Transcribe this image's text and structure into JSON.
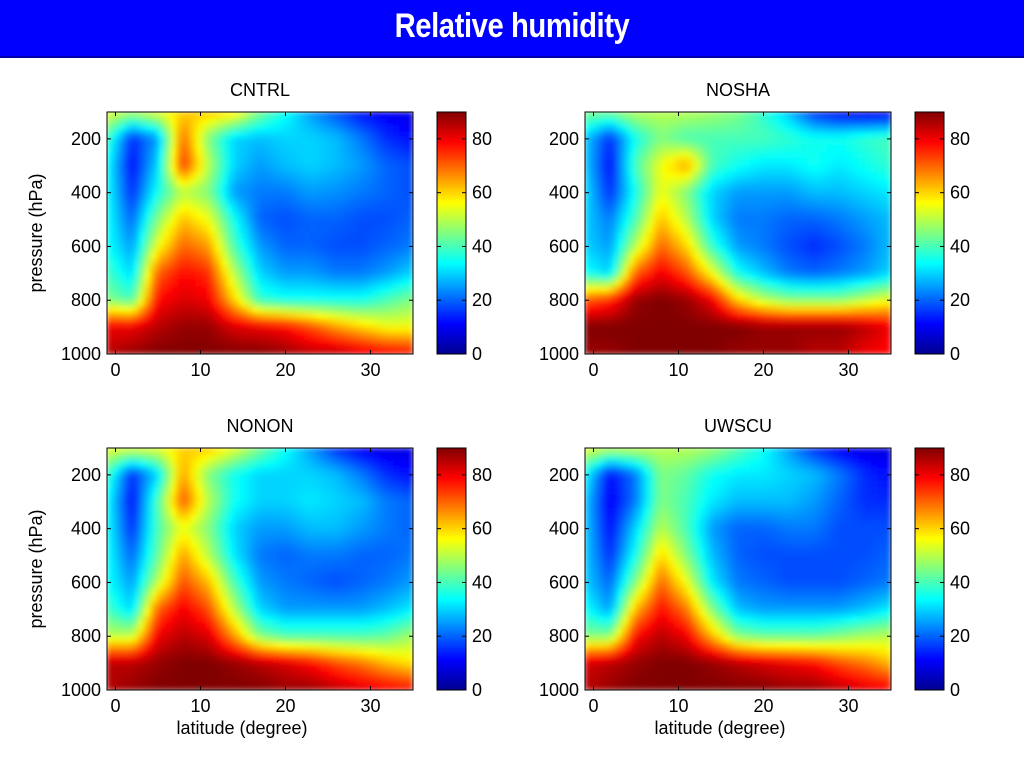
{
  "page": {
    "title": "Relative humidity"
  },
  "chart_data": [
    {
      "type": "heatmap",
      "title": "CNTRL",
      "xlabel": "",
      "ylabel": "pressure (hPa)",
      "xlim": [
        -1,
        35
      ],
      "ylim": [
        1000,
        100
      ],
      "x_ticks": [
        0,
        10,
        20,
        30
      ],
      "y_ticks": [
        200,
        400,
        600,
        800,
        1000
      ],
      "colorbar": {
        "min": 0,
        "max": 90,
        "ticks": [
          0,
          20,
          40,
          60,
          80
        ]
      },
      "x": [
        -1,
        2,
        5,
        8,
        11,
        14,
        17,
        20,
        23,
        26,
        29,
        32,
        35
      ],
      "y": [
        100,
        200,
        300,
        400,
        500,
        600,
        700,
        800,
        900,
        1000
      ],
      "z": [
        [
          55,
          50,
          55,
          60,
          62,
          60,
          45,
          35,
          25,
          18,
          12,
          10,
          8
        ],
        [
          40,
          15,
          25,
          70,
          45,
          30,
          28,
          30,
          30,
          28,
          22,
          15,
          12
        ],
        [
          35,
          12,
          30,
          75,
          50,
          30,
          25,
          28,
          30,
          28,
          25,
          20,
          18
        ],
        [
          35,
          15,
          35,
          50,
          45,
          25,
          22,
          22,
          25,
          24,
          22,
          20,
          18
        ],
        [
          35,
          20,
          45,
          62,
          55,
          35,
          20,
          18,
          20,
          20,
          18,
          18,
          20
        ],
        [
          35,
          25,
          55,
          70,
          65,
          40,
          25,
          20,
          20,
          18,
          18,
          20,
          22
        ],
        [
          40,
          30,
          70,
          78,
          75,
          50,
          30,
          25,
          25,
          22,
          22,
          25,
          30
        ],
        [
          45,
          40,
          78,
          82,
          80,
          60,
          38,
          35,
          35,
          35,
          35,
          40,
          45
        ],
        [
          80,
          80,
          85,
          88,
          88,
          82,
          80,
          78,
          72,
          65,
          60,
          55,
          55
        ],
        [
          85,
          88,
          90,
          90,
          90,
          90,
          90,
          88,
          85,
          85,
          82,
          80,
          78
        ]
      ]
    },
    {
      "type": "heatmap",
      "title": "NOSHA",
      "xlabel": "",
      "ylabel": "",
      "xlim": [
        -1,
        35
      ],
      "ylim": [
        1000,
        100
      ],
      "x_ticks": [
        0,
        10,
        20,
        30
      ],
      "y_ticks": [
        200,
        400,
        600,
        800,
        1000
      ],
      "colorbar": {
        "min": 0,
        "max": 90,
        "ticks": [
          0,
          20,
          40,
          60,
          80
        ]
      },
      "x": [
        -1,
        2,
        5,
        8,
        11,
        14,
        17,
        20,
        23,
        26,
        29,
        32,
        35
      ],
      "y": [
        100,
        200,
        300,
        400,
        500,
        600,
        700,
        800,
        900,
        1000
      ],
      "z": [
        [
          45,
          45,
          50,
          50,
          50,
          48,
          45,
          38,
          28,
          15,
          10,
          8,
          8
        ],
        [
          30,
          15,
          35,
          45,
          40,
          40,
          40,
          40,
          38,
          35,
          35,
          38,
          40
        ],
        [
          30,
          12,
          40,
          55,
          65,
          40,
          35,
          32,
          32,
          35,
          32,
          35,
          38
        ],
        [
          32,
          15,
          35,
          55,
          45,
          30,
          25,
          25,
          25,
          28,
          28,
          30,
          32
        ],
        [
          30,
          22,
          40,
          62,
          50,
          30,
          22,
          22,
          20,
          20,
          22,
          25,
          28
        ],
        [
          30,
          25,
          50,
          70,
          60,
          38,
          25,
          22,
          18,
          15,
          18,
          22,
          28
        ],
        [
          35,
          30,
          70,
          80,
          72,
          55,
          35,
          28,
          22,
          20,
          22,
          25,
          30
        ],
        [
          70,
          75,
          88,
          90,
          88,
          80,
          60,
          50,
          45,
          45,
          45,
          50,
          55
        ],
        [
          90,
          90,
          90,
          90,
          90,
          90,
          90,
          88,
          88,
          88,
          88,
          85,
          80
        ],
        [
          88,
          88,
          90,
          90,
          90,
          90,
          88,
          88,
          88,
          85,
          85,
          80,
          78
        ]
      ]
    },
    {
      "type": "heatmap",
      "title": "NONON",
      "xlabel": "latitude (degree)",
      "ylabel": "pressure (hPa)",
      "xlim": [
        -1,
        35
      ],
      "ylim": [
        1000,
        100
      ],
      "x_ticks": [
        0,
        10,
        20,
        30
      ],
      "y_ticks": [
        200,
        400,
        600,
        800,
        1000
      ],
      "colorbar": {
        "min": 0,
        "max": 90,
        "ticks": [
          0,
          20,
          40,
          60,
          80
        ]
      },
      "x": [
        -1,
        2,
        5,
        8,
        11,
        14,
        17,
        20,
        23,
        26,
        29,
        32,
        35
      ],
      "y": [
        100,
        200,
        300,
        400,
        500,
        600,
        700,
        800,
        900,
        1000
      ],
      "z": [
        [
          55,
          55,
          55,
          60,
          62,
          55,
          45,
          35,
          25,
          15,
          10,
          8,
          8
        ],
        [
          40,
          15,
          30,
          65,
          45,
          35,
          30,
          30,
          30,
          28,
          22,
          15,
          12
        ],
        [
          35,
          12,
          40,
          72,
          50,
          35,
          30,
          30,
          32,
          30,
          28,
          22,
          20
        ],
        [
          35,
          15,
          40,
          55,
          45,
          30,
          25,
          25,
          28,
          28,
          25,
          22,
          20
        ],
        [
          35,
          20,
          42,
          65,
          50,
          32,
          22,
          20,
          22,
          22,
          20,
          20,
          22
        ],
        [
          35,
          25,
          50,
          72,
          62,
          40,
          25,
          22,
          20,
          18,
          20,
          22,
          25
        ],
        [
          40,
          30,
          70,
          80,
          72,
          50,
          30,
          25,
          25,
          25,
          25,
          28,
          32
        ],
        [
          50,
          50,
          80,
          85,
          82,
          65,
          45,
          40,
          40,
          40,
          40,
          42,
          48
        ],
        [
          85,
          85,
          88,
          90,
          90,
          88,
          85,
          82,
          78,
          72,
          68,
          62,
          58
        ],
        [
          85,
          88,
          90,
          90,
          90,
          90,
          90,
          88,
          88,
          85,
          82,
          80,
          78
        ]
      ]
    },
    {
      "type": "heatmap",
      "title": "UWSCU",
      "xlabel": "latitude (degree)",
      "ylabel": "",
      "xlim": [
        -1,
        35
      ],
      "ylim": [
        1000,
        100
      ],
      "x_ticks": [
        0,
        10,
        20,
        30
      ],
      "y_ticks": [
        200,
        400,
        600,
        800,
        1000
      ],
      "colorbar": {
        "min": 0,
        "max": 90,
        "ticks": [
          0,
          20,
          40,
          60,
          80
        ]
      },
      "x": [
        -1,
        2,
        5,
        8,
        11,
        14,
        17,
        20,
        23,
        26,
        29,
        32,
        35
      ],
      "y": [
        100,
        200,
        300,
        400,
        500,
        600,
        700,
        800,
        900,
        1000
      ],
      "z": [
        [
          55,
          52,
          52,
          50,
          50,
          48,
          42,
          35,
          25,
          15,
          10,
          8,
          8
        ],
        [
          35,
          12,
          22,
          45,
          42,
          35,
          32,
          32,
          30,
          28,
          22,
          15,
          12
        ],
        [
          30,
          10,
          22,
          45,
          40,
          32,
          28,
          28,
          28,
          25,
          20,
          15,
          15
        ],
        [
          30,
          12,
          30,
          50,
          40,
          25,
          20,
          20,
          22,
          22,
          18,
          18,
          18
        ],
        [
          30,
          15,
          35,
          60,
          45,
          28,
          20,
          18,
          18,
          18,
          18,
          18,
          20
        ],
        [
          30,
          20,
          45,
          70,
          55,
          32,
          22,
          20,
          18,
          18,
          18,
          20,
          22
        ],
        [
          35,
          25,
          62,
          78,
          68,
          45,
          28,
          25,
          25,
          25,
          25,
          28,
          32
        ],
        [
          45,
          45,
          78,
          85,
          80,
          62,
          45,
          42,
          42,
          42,
          45,
          48,
          50
        ],
        [
          82,
          85,
          88,
          90,
          90,
          88,
          85,
          82,
          80,
          78,
          72,
          68,
          62
        ],
        [
          85,
          88,
          90,
          90,
          90,
          90,
          90,
          90,
          88,
          88,
          85,
          82,
          80
        ]
      ]
    }
  ]
}
